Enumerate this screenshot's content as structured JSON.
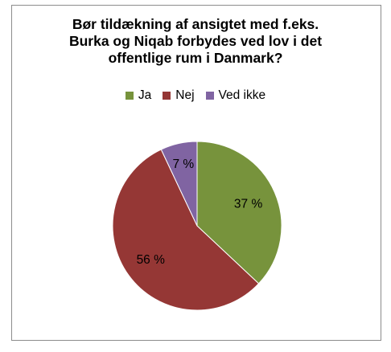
{
  "chart_data": {
    "type": "pie",
    "title_lines": [
      "Bør tildækning af ansigtet med f.eks.",
      "Burka og Niqab forbydes ved lov i det",
      "offentlige rum i Danmark?"
    ],
    "categories": [
      "Ja",
      "Nej",
      "Ved ikke"
    ],
    "values": [
      37,
      56,
      7
    ],
    "labels": [
      "37 %",
      "56 %",
      "7 %"
    ],
    "colors": [
      "#77933c",
      "#953735",
      "#8064a2"
    ],
    "legend": "top"
  }
}
